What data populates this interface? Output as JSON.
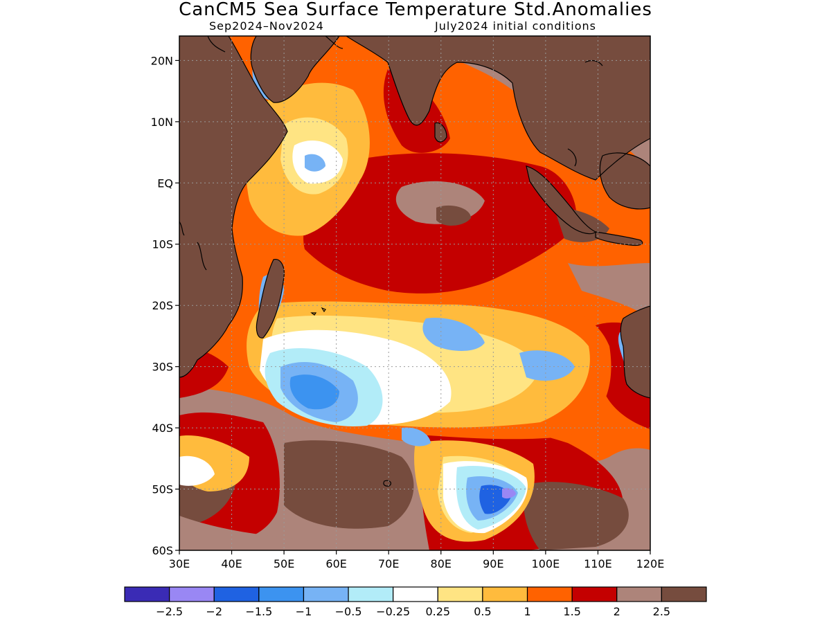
{
  "title": "CanCM5 Sea Surface Temperature Std.Anomalies",
  "subtitle_left": "Sep2024–Nov2024",
  "subtitle_right": "July2024 initial conditions",
  "map": {
    "lon_range": [
      30,
      120
    ],
    "lat_range": [
      -60,
      24
    ],
    "lat_ticks": [
      {
        "value": 20,
        "label": "20N"
      },
      {
        "value": 10,
        "label": "10N"
      },
      {
        "value": 0,
        "label": "EQ"
      },
      {
        "value": -10,
        "label": "10S"
      },
      {
        "value": -20,
        "label": "20S"
      },
      {
        "value": -30,
        "label": "30S"
      },
      {
        "value": -40,
        "label": "40S"
      },
      {
        "value": -50,
        "label": "50S"
      },
      {
        "value": -60,
        "label": "60S"
      }
    ],
    "lon_ticks": [
      {
        "value": 30,
        "label": "30E"
      },
      {
        "value": 40,
        "label": "40E"
      },
      {
        "value": 50,
        "label": "50E"
      },
      {
        "value": 60,
        "label": "60E"
      },
      {
        "value": 70,
        "label": "70E"
      },
      {
        "value": 80,
        "label": "80E"
      },
      {
        "value": 90,
        "label": "90E"
      },
      {
        "value": 100,
        "label": "100E"
      },
      {
        "value": 110,
        "label": "110E"
      },
      {
        "value": 120,
        "label": "120E"
      }
    ],
    "grid": "dotted",
    "land_color": "#764C3E"
  },
  "legend": {
    "colors": [
      "#3A2BB5",
      "#9987F4",
      "#1F62E2",
      "#3C93F0",
      "#77B3F5",
      "#B2ECF8",
      "#FFFFFF",
      "#FFE483",
      "#FFBB3D",
      "#FF6200",
      "#C40000",
      "#AD847A",
      "#764C3E"
    ],
    "labels": [
      "−2.5",
      "−2",
      "−1.5",
      "−1",
      "−0.5",
      "−0.25",
      "0.25",
      "0.5",
      "1",
      "1.5",
      "2",
      "2.5"
    ]
  }
}
